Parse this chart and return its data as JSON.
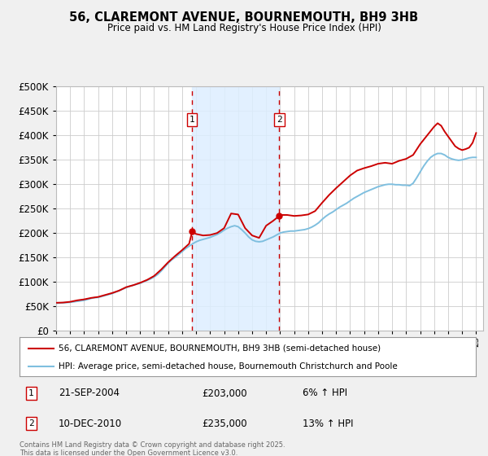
{
  "title": "56, CLAREMONT AVENUE, BOURNEMOUTH, BH9 3HB",
  "subtitle": "Price paid vs. HM Land Registry's House Price Index (HPI)",
  "background_color": "#f0f0f0",
  "plot_bg_color": "#ffffff",
  "grid_color": "#cccccc",
  "hpi_color": "#7fbfdf",
  "price_color": "#cc0000",
  "marker_color": "#cc0000",
  "vline_color": "#cc0000",
  "shade_color": "#ddeeff",
  "ylim": [
    0,
    500000
  ],
  "yticks": [
    0,
    50000,
    100000,
    150000,
    200000,
    250000,
    300000,
    350000,
    400000,
    450000,
    500000
  ],
  "xmin": 1995,
  "xmax": 2025.5,
  "legend_price_label": "56, CLAREMONT AVENUE, BOURNEMOUTH, BH9 3HB (semi-detached house)",
  "legend_hpi_label": "HPI: Average price, semi-detached house, Bournemouth Christchurch and Poole",
  "transactions": [
    {
      "date_num": 2004.72,
      "price": 203000,
      "label": "1",
      "date_str": "21-SEP-2004",
      "pct": "6%"
    },
    {
      "date_num": 2010.94,
      "price": 235000,
      "label": "2",
      "date_str": "10-DEC-2010",
      "pct": "13%"
    }
  ],
  "vshade_regions": [
    [
      2004.72,
      2010.94
    ]
  ],
  "footer": "Contains HM Land Registry data © Crown copyright and database right 2025.\nThis data is licensed under the Open Government Licence v3.0.",
  "hpi_data": [
    [
      1995.0,
      56000
    ],
    [
      1995.25,
      56500
    ],
    [
      1995.5,
      57000
    ],
    [
      1995.75,
      57500
    ],
    [
      1996.0,
      58000
    ],
    [
      1996.25,
      59000
    ],
    [
      1996.5,
      60000
    ],
    [
      1996.75,
      61000
    ],
    [
      1997.0,
      62000
    ],
    [
      1997.25,
      64000
    ],
    [
      1997.5,
      66000
    ],
    [
      1997.75,
      67500
    ],
    [
      1998.0,
      68000
    ],
    [
      1998.25,
      70000
    ],
    [
      1998.5,
      72000
    ],
    [
      1998.75,
      74000
    ],
    [
      1999.0,
      76000
    ],
    [
      1999.25,
      79000
    ],
    [
      1999.5,
      82000
    ],
    [
      1999.75,
      85000
    ],
    [
      2000.0,
      88000
    ],
    [
      2000.25,
      91000
    ],
    [
      2000.5,
      93000
    ],
    [
      2000.75,
      95000
    ],
    [
      2001.0,
      97000
    ],
    [
      2001.25,
      100000
    ],
    [
      2001.5,
      103000
    ],
    [
      2001.75,
      106000
    ],
    [
      2002.0,
      110000
    ],
    [
      2002.25,
      115000
    ],
    [
      2002.5,
      122000
    ],
    [
      2002.75,
      130000
    ],
    [
      2003.0,
      138000
    ],
    [
      2003.25,
      145000
    ],
    [
      2003.5,
      150000
    ],
    [
      2003.75,
      156000
    ],
    [
      2004.0,
      162000
    ],
    [
      2004.25,
      168000
    ],
    [
      2004.5,
      173000
    ],
    [
      2004.75,
      178000
    ],
    [
      2005.0,
      182000
    ],
    [
      2005.25,
      185000
    ],
    [
      2005.5,
      187000
    ],
    [
      2005.75,
      189000
    ],
    [
      2006.0,
      191000
    ],
    [
      2006.25,
      194000
    ],
    [
      2006.5,
      197000
    ],
    [
      2006.75,
      201000
    ],
    [
      2007.0,
      206000
    ],
    [
      2007.25,
      210000
    ],
    [
      2007.5,
      213000
    ],
    [
      2007.75,
      215000
    ],
    [
      2008.0,
      213000
    ],
    [
      2008.25,
      207000
    ],
    [
      2008.5,
      200000
    ],
    [
      2008.75,
      192000
    ],
    [
      2009.0,
      186000
    ],
    [
      2009.25,
      183000
    ],
    [
      2009.5,
      182000
    ],
    [
      2009.75,
      183000
    ],
    [
      2010.0,
      186000
    ],
    [
      2010.25,
      189000
    ],
    [
      2010.5,
      192000
    ],
    [
      2010.75,
      196000
    ],
    [
      2011.0,
      200000
    ],
    [
      2011.25,
      202000
    ],
    [
      2011.5,
      203000
    ],
    [
      2011.75,
      204000
    ],
    [
      2012.0,
      204000
    ],
    [
      2012.25,
      205000
    ],
    [
      2012.5,
      206000
    ],
    [
      2012.75,
      207000
    ],
    [
      2013.0,
      209000
    ],
    [
      2013.25,
      212000
    ],
    [
      2013.5,
      216000
    ],
    [
      2013.75,
      221000
    ],
    [
      2014.0,
      228000
    ],
    [
      2014.25,
      234000
    ],
    [
      2014.5,
      239000
    ],
    [
      2014.75,
      243000
    ],
    [
      2015.0,
      248000
    ],
    [
      2015.25,
      253000
    ],
    [
      2015.5,
      257000
    ],
    [
      2015.75,
      261000
    ],
    [
      2016.0,
      266000
    ],
    [
      2016.25,
      271000
    ],
    [
      2016.5,
      275000
    ],
    [
      2016.75,
      279000
    ],
    [
      2017.0,
      283000
    ],
    [
      2017.25,
      286000
    ],
    [
      2017.5,
      289000
    ],
    [
      2017.75,
      292000
    ],
    [
      2018.0,
      295000
    ],
    [
      2018.25,
      297000
    ],
    [
      2018.5,
      299000
    ],
    [
      2018.75,
      300000
    ],
    [
      2019.0,
      300000
    ],
    [
      2019.25,
      299000
    ],
    [
      2019.5,
      299000
    ],
    [
      2019.75,
      298000
    ],
    [
      2020.0,
      298000
    ],
    [
      2020.25,
      297000
    ],
    [
      2020.5,
      302000
    ],
    [
      2020.75,
      313000
    ],
    [
      2021.0,
      325000
    ],
    [
      2021.25,
      337000
    ],
    [
      2021.5,
      347000
    ],
    [
      2021.75,
      355000
    ],
    [
      2022.0,
      360000
    ],
    [
      2022.25,
      363000
    ],
    [
      2022.5,
      363000
    ],
    [
      2022.75,
      360000
    ],
    [
      2023.0,
      355000
    ],
    [
      2023.25,
      352000
    ],
    [
      2023.5,
      350000
    ],
    [
      2023.75,
      349000
    ],
    [
      2024.0,
      350000
    ],
    [
      2024.25,
      352000
    ],
    [
      2024.5,
      354000
    ],
    [
      2024.75,
      355000
    ],
    [
      2025.0,
      355000
    ]
  ],
  "price_data": [
    [
      1995.0,
      57000
    ],
    [
      1995.5,
      57500
    ],
    [
      1996.0,
      59000
    ],
    [
      1996.5,
      62000
    ],
    [
      1997.0,
      64000
    ],
    [
      1997.5,
      67000
    ],
    [
      1998.0,
      69000
    ],
    [
      1998.5,
      73000
    ],
    [
      1999.0,
      77000
    ],
    [
      1999.5,
      82000
    ],
    [
      2000.0,
      89000
    ],
    [
      2000.5,
      93000
    ],
    [
      2001.0,
      98000
    ],
    [
      2001.5,
      104000
    ],
    [
      2002.0,
      112000
    ],
    [
      2002.5,
      125000
    ],
    [
      2003.0,
      140000
    ],
    [
      2003.5,
      153000
    ],
    [
      2004.0,
      165000
    ],
    [
      2004.5,
      178000
    ],
    [
      2004.72,
      203000
    ],
    [
      2005.0,
      198000
    ],
    [
      2005.5,
      195000
    ],
    [
      2006.0,
      196000
    ],
    [
      2006.5,
      200000
    ],
    [
      2007.0,
      210000
    ],
    [
      2007.5,
      240000
    ],
    [
      2008.0,
      238000
    ],
    [
      2008.5,
      210000
    ],
    [
      2009.0,
      195000
    ],
    [
      2009.5,
      190000
    ],
    [
      2010.0,
      215000
    ],
    [
      2010.5,
      225000
    ],
    [
      2010.94,
      235000
    ],
    [
      2011.0,
      237000
    ],
    [
      2011.5,
      237000
    ],
    [
      2012.0,
      235000
    ],
    [
      2012.5,
      236000
    ],
    [
      2013.0,
      238000
    ],
    [
      2013.5,
      245000
    ],
    [
      2014.0,
      262000
    ],
    [
      2014.5,
      278000
    ],
    [
      2015.0,
      292000
    ],
    [
      2015.5,
      305000
    ],
    [
      2016.0,
      318000
    ],
    [
      2016.5,
      328000
    ],
    [
      2017.0,
      333000
    ],
    [
      2017.5,
      337000
    ],
    [
      2018.0,
      342000
    ],
    [
      2018.5,
      344000
    ],
    [
      2019.0,
      342000
    ],
    [
      2019.5,
      348000
    ],
    [
      2020.0,
      352000
    ],
    [
      2020.5,
      360000
    ],
    [
      2021.0,
      382000
    ],
    [
      2021.5,
      400000
    ],
    [
      2022.0,
      418000
    ],
    [
      2022.25,
      425000
    ],
    [
      2022.5,
      420000
    ],
    [
      2022.75,
      408000
    ],
    [
      2023.0,
      398000
    ],
    [
      2023.25,
      388000
    ],
    [
      2023.5,
      378000
    ],
    [
      2023.75,
      373000
    ],
    [
      2024.0,
      370000
    ],
    [
      2024.25,
      372000
    ],
    [
      2024.5,
      375000
    ],
    [
      2024.75,
      385000
    ],
    [
      2025.0,
      405000
    ]
  ]
}
